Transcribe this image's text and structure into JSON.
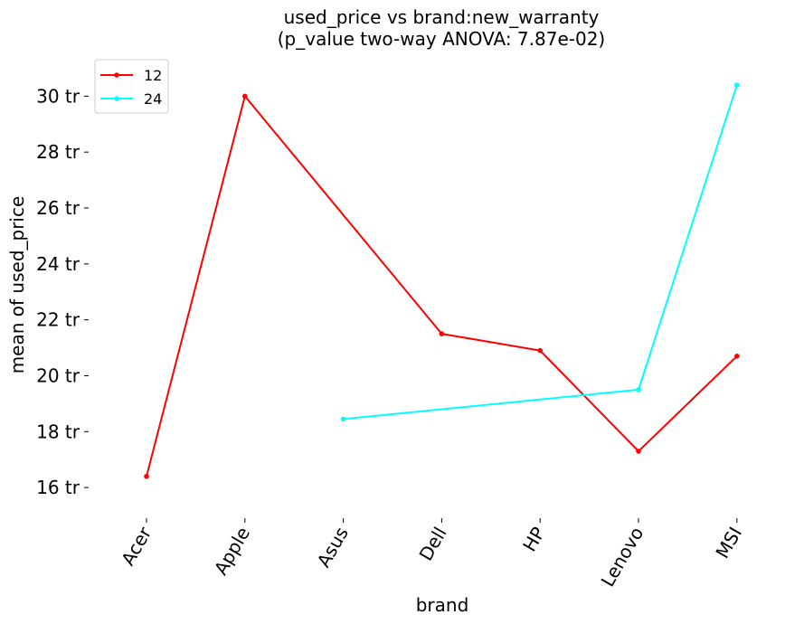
{
  "chart_data": {
    "type": "line",
    "title": "used_price vs brand:new_warranty",
    "subtitle": "(p_value two-way ANOVA: 7.87e-02)",
    "xlabel": "brand",
    "ylabel": "mean of used_price",
    "categories": [
      "Acer",
      "Apple",
      "Asus",
      "Dell",
      "HP",
      "Lenovo",
      "MSI"
    ],
    "y_ticks": [
      16,
      18,
      20,
      22,
      24,
      26,
      28,
      30
    ],
    "y_tick_suffix": " tr",
    "ylim": [
      15.0,
      31.5
    ],
    "grid": false,
    "legend_position": "top-left",
    "series": [
      {
        "name": "12",
        "color": "#ff0000",
        "values": [
          16.4,
          30.0,
          null,
          21.5,
          20.9,
          17.3,
          20.7
        ],
        "connect_gaps": true
      },
      {
        "name": "24",
        "color": "#00ffff",
        "values": [
          null,
          null,
          18.45,
          null,
          null,
          19.5,
          30.4
        ],
        "connect_gaps": true
      }
    ]
  }
}
